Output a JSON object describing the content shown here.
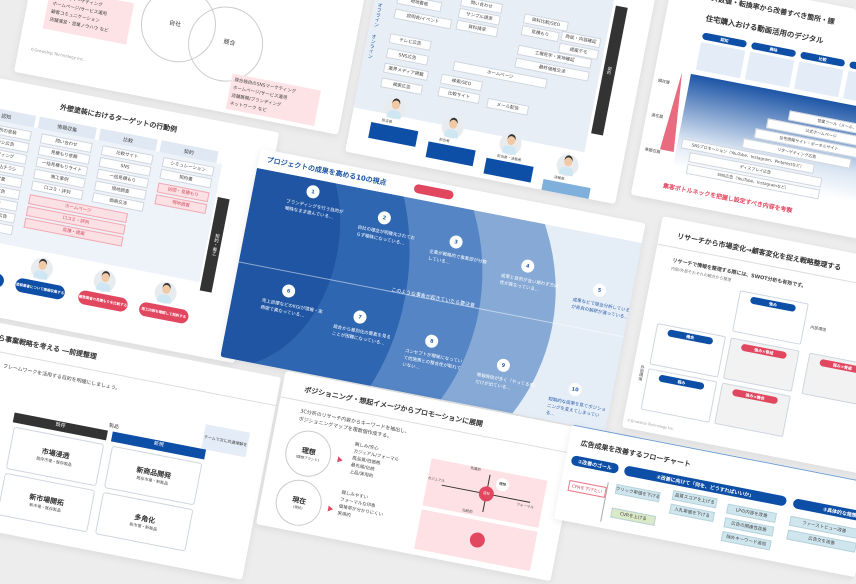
{
  "center_slide": {
    "title": "プロジェクトの成果を高める10の視点",
    "midline": "このような事象が起きていたら要注意",
    "numbers": [
      "1",
      "2",
      "3",
      "4",
      "5",
      "6",
      "7",
      "8",
      "9",
      "10"
    ],
    "items": [
      "ブランディングを行う目的が曖昧なまま進んでいる…",
      "自社の理念が明確化されておらず曖昧になっている…",
      "企業が戦略的で事業部が分散している…",
      "成果と目的が合い揃わず方向性が異なっている…",
      "成果などで競合分析しているが各自の解釈が違っている…",
      "売上目標などのKGIが現場・実務間で異なっている…",
      "競合から差別化の要素を見ることが困難になっている…",
      "コンセプトが曖昧になっていて他施策との整合性が取れていない…",
      "情報発信が多く「やってる感」だけが出ている…",
      "短期的な成果を見てポジショニングを変えてしまっている…"
    ],
    "colors": {
      "dark": "#1f55a2",
      "mid": "#2f66b2",
      "light": "#5585c4",
      "pale": "#86a9d6",
      "bg": "#e5edf7",
      "badge": "#e24760"
    }
  },
  "top_middle_slide": {
    "rows": [
      "オフライン",
      "オンライン"
    ],
    "phase_last": "契約",
    "boxes": [
      "ダイレクトメール",
      "現地看板",
      "説明会/イベント",
      "テレビ広告",
      "SNS広告",
      "業界メディア掲載",
      "検索広告",
      "問い合わせ",
      "サンプル請求",
      "資料請求",
      "資料比較/SEO",
      "見積もり",
      "ホームページ",
      "検索/SEO",
      "比較サイト",
      "メール配信",
      "商談・内容確認",
      "提案デモ",
      "工場見学・実地確認",
      "最終価格交渉"
    ],
    "side_bar": "契約",
    "personas": [
      "担当者",
      "担当者",
      "担当者・決裁者",
      "決裁者"
    ]
  },
  "top_right_slide": {
    "title": "各フェーズ数値・転換率から改善すべき箇所・課",
    "subtitle": "住宅購入おける動画活用のデジタル",
    "phases": [
      "認知",
      "興味",
      "比較",
      "購入"
    ],
    "levels": [
      "顕在層",
      "潜在層",
      "準顕在層"
    ],
    "bars": [
      "営業ツール（メール、電話）",
      "公式ホームページ",
      "住宅情報サイト・ポータルサイト",
      "リターゲティング広告",
      "SNSプロモーション（YouTube、Instagram、Pinterestなど）",
      "ディスプレイ広告",
      "SNS広告（YouTube、Instagramなど）"
    ],
    "footer": "集客ボトルネックを把握し設定すべき内容を考察"
  },
  "venn_slide": {
    "circles": [
      "自社",
      "競合"
    ],
    "left_list": [
      "自社SNSマーケティング",
      "ホームページ/サービス運用",
      "顧客コミュニケーション",
      "店舗運営・営業ノウハウ など"
    ],
    "right_list": [
      "競合独自のSNSマーケティング",
      "ホームページ/サービス運用",
      "店舗展開/ブランディング",
      "ネットワーク など"
    ],
    "footer": "©Growship Technology Inc."
  },
  "left_middle_slide": {
    "title": "外壁塗装におけるターゲットの行動例",
    "phases": [
      "認知",
      "情報収集",
      "比較",
      "契約"
    ],
    "boxes": [
      "近所の塗装",
      "チラシ広告",
      "ポスティング",
      "看板・折込チラシ",
      "訪問営業",
      "ネット広告",
      "SNS広告",
      "リスティング広告",
      "動画広告",
      "問い合わせ",
      "見積もり依頼",
      "一括見積もりサイト",
      "施工事例",
      "口コミ・評判",
      "比較サイト",
      "SNS",
      "一括見積もり",
      "現地調査",
      "価格交渉",
      "シミュレーション",
      "契約書"
    ],
    "pink_boxes": [
      "訪問・見積もり",
      "現地調査",
      "ホームページ",
      "口コミ・評判",
      "見積・提案"
    ],
    "side_bar": "契約・着工",
    "personas_blue": [
      "外壁の劣化に気づく",
      "塗装業者について情報収集する"
    ],
    "personas_red": [
      "複数業者の見積もりを比較する",
      "施工内容を確認して契約する"
    ]
  },
  "bottom_left_slide": {
    "title": "自社の事業フェーズから事業戦略を考える ―前提整理",
    "lead": "ず、フレームワークを活用する目的を明確にしましょう。",
    "headers": [
      "既存",
      "新規"
    ],
    "axis": "製品",
    "side_note": "チームで次に共通理解を",
    "cells": [
      {
        "name": "市場浸透",
        "sub": "既存市場・既存製品"
      },
      {
        "name": "新市場開拓",
        "sub": "新市場・既存製品"
      },
      {
        "name": "新商品開発",
        "sub": "既存市場・新製品"
      },
      {
        "name": "多角化",
        "sub": "新市場・新製品"
      }
    ]
  },
  "bottom_middle_slide": {
    "title": "ポジショニング・想起イメージからプロモーションに展開",
    "lead_1": "3C分析のリサーチ内容からキーワードを抽出し、",
    "lead_2": "ポジショニングマップを複数個作成する。",
    "circles": [
      {
        "name": "理想",
        "sub": "(理想ブランド)"
      },
      {
        "name": "現在",
        "sub": "(現状)"
      }
    ],
    "list_1": [
      "親しみ/安心",
      "カジュアル/フォーマル",
      "高品質/低価格",
      "最先端/伝統",
      "上品/実用的"
    ],
    "list_2": [
      "親しみやすい",
      "フォーマルな印象",
      "価格帯が分かりにくい",
      "実用的"
    ],
    "map_axes": [
      "先進的",
      "伝統的",
      "カジュアル",
      "フォーマル"
    ],
    "map_point": "自社",
    "map_ideal": "理想"
  },
  "right_middle_slide": {
    "title": "リサーチから市場変化→顧客変化を捉え戦略整理する",
    "lead": "リサーチで情報を整理する際には、SWOT分析も有効です。",
    "sub": "内部/外部それぞれの観点から整理",
    "labels": [
      "内部環境",
      "外部環境"
    ],
    "pills_blue": [
      "強み",
      "機会",
      "弱み"
    ],
    "pills_red": [
      "強み×脅威",
      "強み×機会",
      "弱み×脅威"
    ],
    "footer": "©Growship Technology Inc."
  },
  "bottom_right_slide": {
    "title": "広告成果を改善するフローチャート",
    "steps": [
      "①改善のゴール",
      "②改善に向けて「何を、どうすればいいか」",
      "③具体的な施策"
    ],
    "goal": "CPAを下げたい",
    "level1": [
      "クリック単価を下げる",
      "CVRを上げる"
    ],
    "level2": [
      "品質スコアを上げる",
      "入札単価を下げる"
    ],
    "level3": [
      "LPの内容を改善",
      "広告の関連性改善",
      "除外キーワード追加"
    ],
    "level4": [
      "ファーストビュー改善",
      "広告文を改善"
    ]
  }
}
